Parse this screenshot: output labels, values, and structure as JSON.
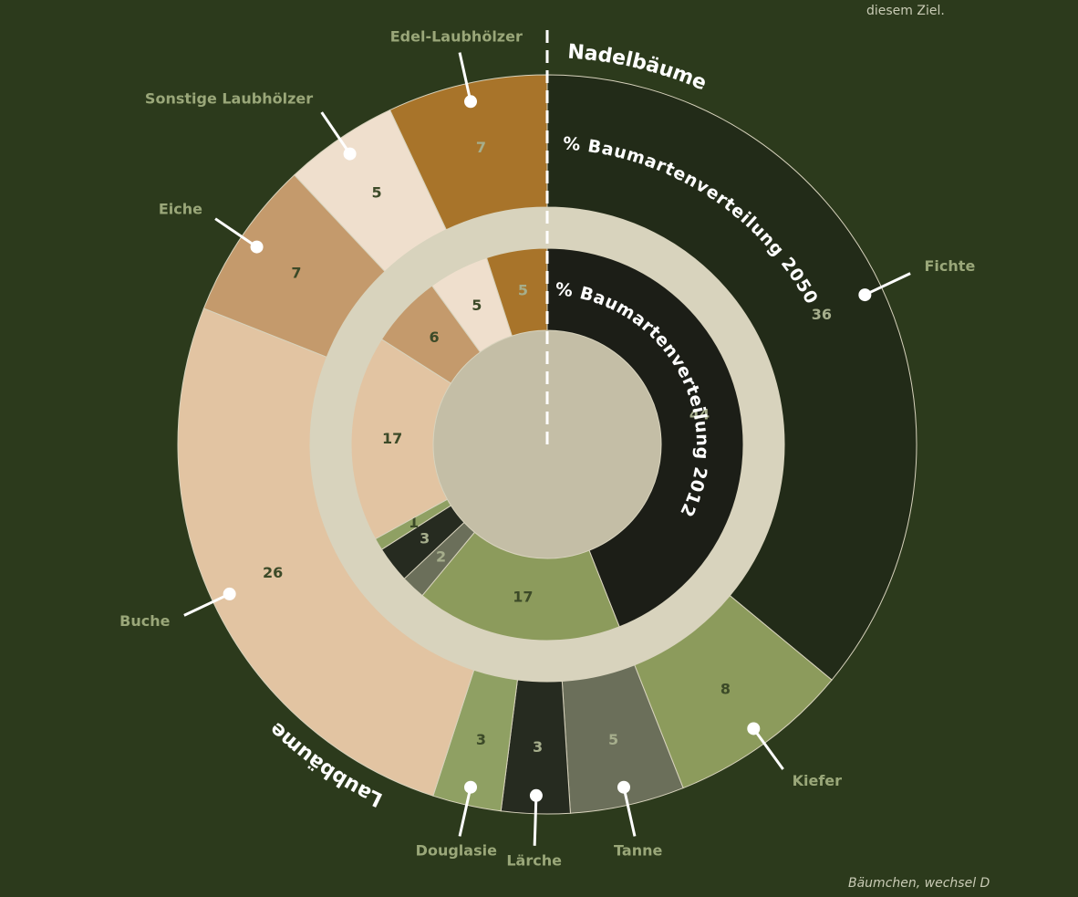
{
  "chart_data": {
    "type": "ring",
    "categories": [
      "Fichte",
      "Kiefer",
      "Tanne",
      "Lärche",
      "Douglasie",
      "Buche",
      "Eiche",
      "Sonstige Laubhölzer",
      "Edel-Laubhölzer"
    ],
    "series": [
      {
        "name": "% Baumartenverteilung 2012",
        "values": [
          44,
          17,
          2,
          3,
          1,
          17,
          6,
          5,
          5
        ],
        "colors": [
          "#1c1e17",
          "#8c9b5c",
          "#6b6f5a",
          "#262b20",
          "#8fa063",
          "#e2c4a2",
          "#c49a6c",
          "#efdfcd",
          "#a8742a"
        ]
      },
      {
        "name": "% Baumartenverteilung 2050",
        "values": [
          36,
          8,
          5,
          3,
          3,
          26,
          7,
          5,
          7
        ],
        "colors": [
          "#222b18",
          "#8c9b5c",
          "#6b6f5a",
          "#262b20",
          "#8fa063",
          "#e2c4a2",
          "#c49a6c",
          "#efdfcd",
          "#a8742a"
        ]
      }
    ],
    "groups": [
      "Nadelbäume",
      "Laubbäume"
    ],
    "notes": [
      "diesem Ziel.",
      "Bäumchen, wechsel D"
    ]
  }
}
